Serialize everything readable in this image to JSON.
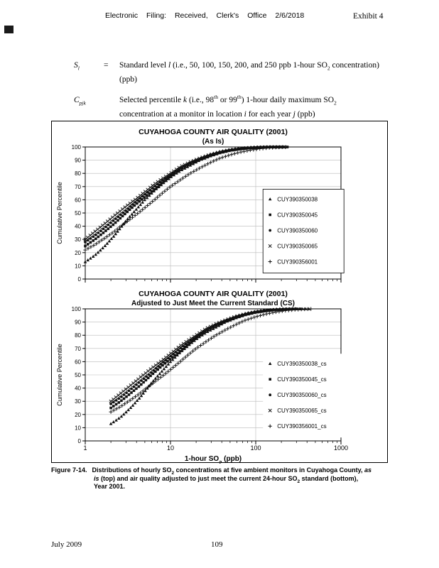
{
  "page": {
    "header": {
      "filing_line": "Electronic Filing: Received, Clerk's Office 2/6/2018",
      "exhibit_label": "Exhibit 4"
    },
    "definitions": [
      {
        "symbol": [
          {
            "i": "S"
          },
          {
            "sub_i": "l"
          }
        ],
        "eq": "=",
        "lines": [
          [
            {
              "s": "Standard level "
            },
            {
              "i": "l"
            },
            {
              "s": " (i.e., 50, 100, 150, 200, and 250 ppb 1-hour SO"
            },
            {
              "sub": "2"
            },
            {
              "s": " concentration)"
            }
          ],
          [
            {
              "s": "(ppb)"
            }
          ]
        ]
      },
      {
        "symbol": [
          {
            "i": "C"
          },
          {
            "sub_i": "pjk"
          }
        ],
        "eq": "",
        "lines": [
          [
            {
              "s": "Selected percentile "
            },
            {
              "i": "k"
            },
            {
              "s": " (i.e., 98"
            },
            {
              "sup": "th"
            },
            {
              "s": " or 99"
            },
            {
              "sup": "th"
            },
            {
              "s": ") 1-hour daily maximum SO"
            },
            {
              "sub": "2"
            }
          ],
          [
            {
              "s": "concentration at a monitor in location "
            },
            {
              "i": "i"
            },
            {
              "s": " for each year "
            },
            {
              "i": "j"
            },
            {
              "s": " (ppb)"
            }
          ]
        ]
      }
    ],
    "caption": {
      "label": "Figure 7-14.",
      "segments": [
        {
          "s": "Distributions of hourly SO"
        },
        {
          "sub": "2"
        },
        {
          "s": " concentrations at five ambient monitors in Cuyahoga County, "
        },
        {
          "i": "as is"
        },
        {
          "s": " (top) and air quality adjusted to just meet the current 24-hour SO"
        },
        {
          "sub": "2"
        },
        {
          "s": " standard (bottom), Year 2001."
        }
      ]
    },
    "footer": {
      "date": "July 2009",
      "page_number": "109"
    }
  },
  "chart_data": [
    {
      "type": "scatter",
      "title": "CUYAHOGA COUNTY AIR QUALITY (2001)",
      "subtitle": "(As Is)",
      "ylabel": "Cumulative Percentile",
      "xlabel": "1-hour SO2 (ppb)",
      "xlabel_rich": [
        {
          "s": "1-hour SO"
        },
        {
          "sub": "2"
        },
        {
          "s": " (ppb)"
        }
      ],
      "x_scale": "log",
      "xlim": [
        1,
        1000
      ],
      "ylim": [
        0,
        100
      ],
      "y_tick_step": 10,
      "x_ticks": [
        1,
        10,
        100,
        1000
      ],
      "show_x_tick_labels": false,
      "show_x_title": false,
      "grid": true,
      "legend": {
        "position": "right-inside",
        "bordered": true
      },
      "series": [
        {
          "name": "CUY390350038",
          "marker": "triangle",
          "points": [
            [
              1,
              13
            ],
            [
              1.3,
              18
            ],
            [
              1.7,
              25
            ],
            [
              2.2,
              33
            ],
            [
              3,
              44
            ],
            [
              4,
              53
            ],
            [
              5,
              60
            ],
            [
              6.5,
              67
            ],
            [
              8,
              72
            ],
            [
              10,
              77
            ],
            [
              13,
              82
            ],
            [
              17,
              86
            ],
            [
              22,
              90
            ],
            [
              29,
              93
            ],
            [
              38,
              95.5
            ],
            [
              50,
              97.3
            ],
            [
              65,
              98.4
            ],
            [
              85,
              99.2
            ],
            [
              110,
              99.6
            ],
            [
              140,
              99.9
            ],
            [
              180,
              100
            ],
            [
              240,
              100
            ]
          ]
        },
        {
          "name": "CUY390350045",
          "marker": "square",
          "points": [
            [
              1,
              25
            ],
            [
              1.3,
              30
            ],
            [
              1.7,
              36
            ],
            [
              2.2,
              42
            ],
            [
              3,
              50
            ],
            [
              4,
              57
            ],
            [
              5,
              62
            ],
            [
              6.5,
              68
            ],
            [
              8,
              73
            ],
            [
              10,
              78
            ],
            [
              13,
              83
            ],
            [
              17,
              87
            ],
            [
              22,
              90.5
            ],
            [
              29,
              93.5
            ],
            [
              38,
              95.8
            ],
            [
              50,
              97.5
            ],
            [
              65,
              98.6
            ],
            [
              85,
              99.3
            ],
            [
              110,
              99.7
            ],
            [
              140,
              99.9
            ],
            [
              180,
              100
            ],
            [
              240,
              100
            ]
          ]
        },
        {
          "name": "CUY390350060",
          "marker": "circle",
          "points": [
            [
              1,
              28
            ],
            [
              1.3,
              33
            ],
            [
              1.7,
              39
            ],
            [
              2.2,
              45
            ],
            [
              3,
              52
            ],
            [
              4,
              59
            ],
            [
              5,
              64
            ],
            [
              6.5,
              70
            ],
            [
              8,
              74.5
            ],
            [
              10,
              79
            ],
            [
              13,
              84
            ],
            [
              17,
              88
            ],
            [
              22,
              91
            ],
            [
              29,
              94
            ],
            [
              38,
              96
            ],
            [
              50,
              97.7
            ],
            [
              65,
              98.7
            ],
            [
              85,
              99.4
            ],
            [
              110,
              99.8
            ],
            [
              150,
              100
            ],
            [
              220,
              100
            ]
          ]
        },
        {
          "name": "CUY390350065",
          "marker": "x",
          "points": [
            [
              1,
              30
            ],
            [
              1.3,
              36
            ],
            [
              1.7,
              42
            ],
            [
              2.2,
              48
            ],
            [
              3,
              55
            ],
            [
              4,
              61
            ],
            [
              5,
              66
            ],
            [
              6.5,
              72
            ],
            [
              8,
              76
            ],
            [
              10,
              80
            ],
            [
              13,
              85
            ],
            [
              17,
              88.5
            ],
            [
              22,
              91.5
            ],
            [
              29,
              94.2
            ],
            [
              38,
              96.3
            ],
            [
              50,
              97.8
            ],
            [
              65,
              98.8
            ],
            [
              85,
              99.5
            ],
            [
              110,
              99.8
            ],
            [
              150,
              100
            ],
            [
              220,
              100
            ]
          ]
        },
        {
          "name": "CUY390356001",
          "marker": "plus",
          "points": [
            [
              1,
              22
            ],
            [
              1.3,
              26
            ],
            [
              1.7,
              31
            ],
            [
              2.2,
              36
            ],
            [
              3,
              43
            ],
            [
              4,
              49
            ],
            [
              5,
              54
            ],
            [
              6.5,
              60
            ],
            [
              8,
              65
            ],
            [
              10,
              70
            ],
            [
              13,
              75
            ],
            [
              17,
              80
            ],
            [
              22,
              84
            ],
            [
              29,
              88
            ],
            [
              38,
              91.5
            ],
            [
              50,
              94
            ],
            [
              65,
              96
            ],
            [
              85,
              97.5
            ],
            [
              110,
              98.6
            ],
            [
              140,
              99.3
            ],
            [
              180,
              99.7
            ],
            [
              240,
              100
            ]
          ]
        }
      ]
    },
    {
      "type": "scatter",
      "title": "CUYAHOGA COUNTY AIR QUALITY (2001)",
      "subtitle": "Adjusted to Just Meet the Current Standard (CS)",
      "ylabel": "Cumulative Percentile",
      "xlabel": "1-hour SO2 (ppb)",
      "xlabel_rich": [
        {
          "s": "1-hour SO"
        },
        {
          "sub": "2"
        },
        {
          "s": " (ppb)"
        }
      ],
      "x_scale": "log",
      "xlim": [
        1,
        1000
      ],
      "ylim": [
        0,
        100
      ],
      "y_tick_step": 10,
      "x_ticks": [
        1,
        10,
        100,
        1000
      ],
      "show_x_tick_labels": true,
      "show_x_title": true,
      "grid": true,
      "legend": {
        "position": "right-inside",
        "bordered": false
      },
      "series": [
        {
          "name": "CUY390350038_cs",
          "marker": "triangle",
          "points": [
            [
              2,
              13
            ],
            [
              2.6,
              18
            ],
            [
              3.4,
              25
            ],
            [
              4.4,
              33
            ],
            [
              6,
              44
            ],
            [
              8,
              53
            ],
            [
              10,
              60
            ],
            [
              13,
              67
            ],
            [
              16,
              72
            ],
            [
              20,
              77
            ],
            [
              26,
              82
            ],
            [
              34,
              86
            ],
            [
              44,
              90
            ],
            [
              58,
              93
            ],
            [
              76,
              95.5
            ],
            [
              100,
              97.3
            ],
            [
              130,
              98.4
            ],
            [
              170,
              99.2
            ],
            [
              220,
              99.6
            ],
            [
              280,
              99.9
            ],
            [
              360,
              100
            ],
            [
              450,
              100
            ]
          ]
        },
        {
          "name": "CUY390350045_cs",
          "marker": "square",
          "points": [
            [
              2,
              25
            ],
            [
              2.6,
              30
            ],
            [
              3.4,
              36
            ],
            [
              4.4,
              42
            ],
            [
              6,
              50
            ],
            [
              8,
              57
            ],
            [
              10,
              62
            ],
            [
              13,
              68
            ],
            [
              16,
              73
            ],
            [
              20,
              78
            ],
            [
              26,
              83
            ],
            [
              34,
              87
            ],
            [
              44,
              90.5
            ],
            [
              58,
              93.5
            ],
            [
              76,
              95.8
            ],
            [
              100,
              97.5
            ],
            [
              130,
              98.6
            ],
            [
              170,
              99.3
            ],
            [
              220,
              99.7
            ],
            [
              280,
              99.9
            ],
            [
              360,
              100
            ]
          ]
        },
        {
          "name": "CUY390350060_cs",
          "marker": "circle",
          "points": [
            [
              2,
              28
            ],
            [
              2.6,
              33
            ],
            [
              3.4,
              39
            ],
            [
              4.4,
              45
            ],
            [
              6,
              52
            ],
            [
              8,
              59
            ],
            [
              10,
              64
            ],
            [
              13,
              70
            ],
            [
              16,
              74.5
            ],
            [
              20,
              79
            ],
            [
              26,
              84
            ],
            [
              34,
              88
            ],
            [
              44,
              91
            ],
            [
              58,
              94
            ],
            [
              76,
              96
            ],
            [
              100,
              97.7
            ],
            [
              130,
              98.7
            ],
            [
              170,
              99.4
            ],
            [
              220,
              99.8
            ],
            [
              300,
              100
            ]
          ]
        },
        {
          "name": "CUY390350065_cs",
          "marker": "x",
          "points": [
            [
              2,
              30
            ],
            [
              2.6,
              36
            ],
            [
              3.4,
              42
            ],
            [
              4.4,
              48
            ],
            [
              6,
              55
            ],
            [
              8,
              61
            ],
            [
              10,
              66
            ],
            [
              13,
              72
            ],
            [
              16,
              76
            ],
            [
              20,
              80
            ],
            [
              26,
              85
            ],
            [
              34,
              88.5
            ],
            [
              44,
              91.5
            ],
            [
              58,
              94.2
            ],
            [
              76,
              96.3
            ],
            [
              100,
              97.8
            ],
            [
              130,
              98.8
            ],
            [
              170,
              99.5
            ],
            [
              220,
              99.8
            ],
            [
              300,
              100
            ]
          ]
        },
        {
          "name": "CUY390356001_cs",
          "marker": "plus",
          "points": [
            [
              2,
              22
            ],
            [
              2.6,
              26
            ],
            [
              3.4,
              31
            ],
            [
              4.4,
              36
            ],
            [
              6,
              43
            ],
            [
              8,
              49
            ],
            [
              10,
              54
            ],
            [
              13,
              60
            ],
            [
              16,
              65
            ],
            [
              20,
              70
            ],
            [
              26,
              75
            ],
            [
              34,
              80
            ],
            [
              44,
              84
            ],
            [
              58,
              88
            ],
            [
              76,
              91.5
            ],
            [
              100,
              94
            ],
            [
              130,
              96
            ],
            [
              170,
              97.5
            ],
            [
              220,
              98.6
            ],
            [
              280,
              99.3
            ],
            [
              360,
              99.7
            ],
            [
              460,
              100
            ]
          ]
        }
      ]
    }
  ]
}
